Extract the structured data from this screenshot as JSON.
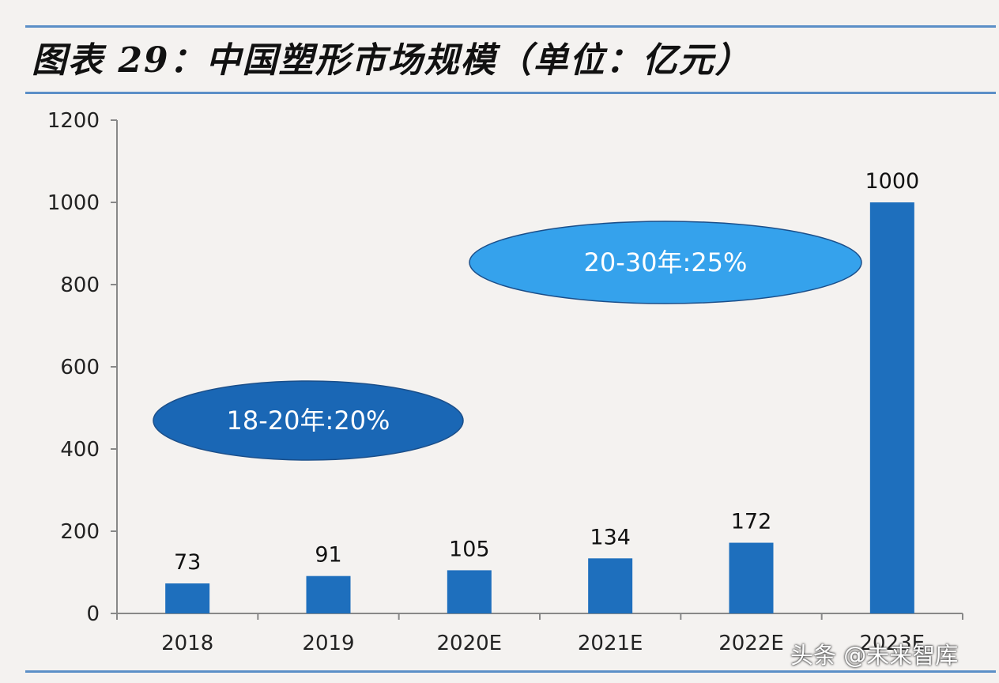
{
  "title": "图表 29：中国塑形市场规模（单位：亿元）",
  "watermark": "头条 @未来智库",
  "colors": {
    "bar": "#1e6fbd",
    "ellipse_1": "#1a67b5",
    "ellipse_2": "#35a2ec",
    "axis": "#888888",
    "rule": "#5b8fc7"
  },
  "chart_data": {
    "type": "bar",
    "categories": [
      "2018",
      "2019",
      "2020E",
      "2021E",
      "2022E",
      "2023E"
    ],
    "values": [
      73,
      91,
      105,
      134,
      172,
      1000
    ],
    "data_labels": [
      "73",
      "91",
      "105",
      "134",
      "172",
      "1000"
    ],
    "ylim": [
      0,
      1200
    ],
    "yticks": [
      0,
      200,
      400,
      600,
      800,
      1000,
      1200
    ],
    "ytick_labels": [
      "0",
      "200",
      "400",
      "600",
      "800",
      "1000",
      "1200"
    ],
    "grid": false,
    "annotations": [
      {
        "text": "18-20年:20%"
      },
      {
        "text": "20-30年:25%"
      }
    ]
  }
}
